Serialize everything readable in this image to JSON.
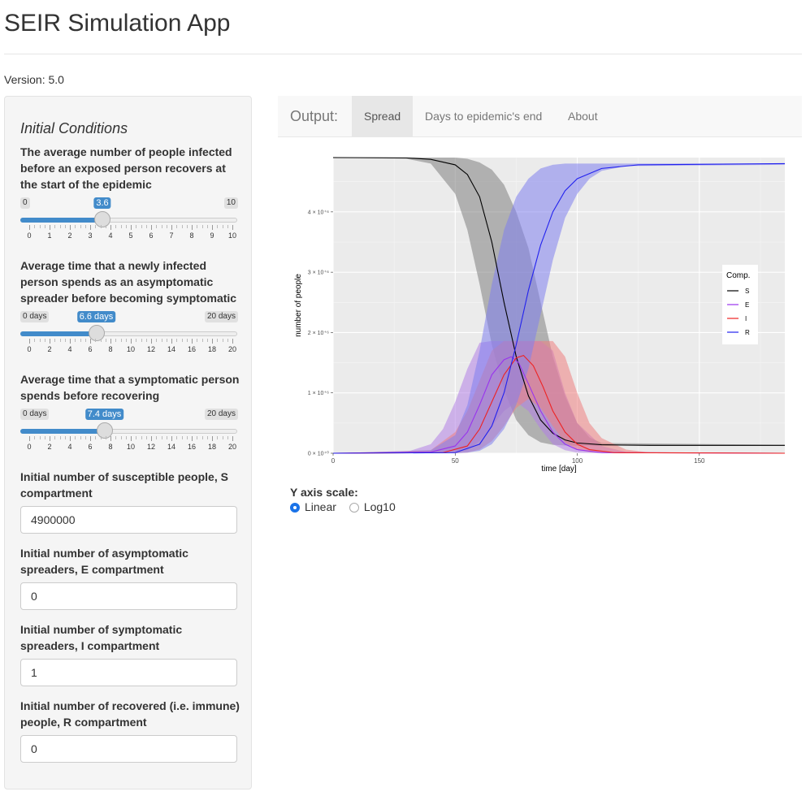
{
  "app": {
    "title": "SEIR Simulation App",
    "version": "Version: 5.0"
  },
  "sidebar": {
    "heading": "Initial Conditions",
    "r0": {
      "label": "The average number of people infected before an exposed person recovers at the start of the epidemic",
      "min_label": "0",
      "max_label": "10",
      "value_label": "3.6",
      "value": 3.6,
      "min": 0,
      "max": 10,
      "tick_labels": [
        "0",
        "1",
        "2",
        "3",
        "4",
        "5",
        "6",
        "7",
        "8",
        "9",
        "10"
      ]
    },
    "incubation": {
      "label": "Average time that a newly infected person spends as an asymptomatic spreader before becoming symptomatic",
      "min_label": "0 days",
      "max_label": "20 days",
      "value_label": "6.6 days",
      "value": 6.6,
      "min": 0,
      "max": 20,
      "tick_labels": [
        "0",
        "2",
        "4",
        "6",
        "8",
        "10",
        "12",
        "14",
        "16",
        "18",
        "20"
      ]
    },
    "recovery": {
      "label": "Average time that a symptomatic person spends before recovering",
      "min_label": "0 days",
      "max_label": "20 days",
      "value_label": "7.4 days",
      "value": 7.4,
      "min": 0,
      "max": 20,
      "tick_labels": [
        "0",
        "2",
        "4",
        "6",
        "8",
        "10",
        "12",
        "14",
        "16",
        "18",
        "20"
      ]
    },
    "s0": {
      "label": "Initial number of susceptible people, S compartment",
      "value": "4900000"
    },
    "e0": {
      "label": "Initial number of asymptomatic spreaders, E compartment",
      "value": "0"
    },
    "i0": {
      "label": "Initial number of symptomatic spreaders, I compartment",
      "value": "1"
    },
    "r0c": {
      "label": "Initial number of recovered (i.e. immune) people, R compartment",
      "value": "0"
    }
  },
  "tabs": {
    "brand": "Output:",
    "items": [
      "Spread",
      "Days to epidemic's end",
      "About"
    ],
    "active": 0
  },
  "y_scale": {
    "title": "Y axis scale:",
    "options": [
      "Linear",
      "Log10"
    ],
    "selected": 0
  },
  "chart_data": {
    "type": "line",
    "xlabel": "time [day]",
    "ylabel": "number of people",
    "xlim": [
      0,
      185
    ],
    "ylim": [
      0,
      4900000
    ],
    "x_ticks": [
      0,
      50,
      100,
      150
    ],
    "x_tick_labels": [
      "0",
      "50",
      "100",
      "150"
    ],
    "y_ticks": [
      0,
      1000000,
      2000000,
      3000000,
      4000000
    ],
    "y_tick_labels": [
      "0 × 10⁺⁰",
      "1 × 10⁺⁶",
      "2 × 10⁺⁶",
      "3 × 10⁺⁶",
      "4 × 10⁺⁶"
    ],
    "legend": {
      "title": "Comp.",
      "placement": "right",
      "entries": [
        "S",
        "E",
        "I",
        "R"
      ]
    },
    "grid": true,
    "series": [
      {
        "name": "S",
        "color": "#000000",
        "band_color": "#7f7f7f",
        "points": [
          [
            0,
            4900000
          ],
          [
            30,
            4895000
          ],
          [
            40,
            4870000
          ],
          [
            50,
            4780000
          ],
          [
            55,
            4620000
          ],
          [
            60,
            4250000
          ],
          [
            65,
            3500000
          ],
          [
            70,
            2500000
          ],
          [
            75,
            1600000
          ],
          [
            80,
            950000
          ],
          [
            85,
            550000
          ],
          [
            90,
            330000
          ],
          [
            95,
            220000
          ],
          [
            100,
            170000
          ],
          [
            110,
            140000
          ],
          [
            130,
            130000
          ],
          [
            185,
            130000
          ]
        ],
        "band": [
          [
            0,
            4900000,
            4900000
          ],
          [
            30,
            4880000,
            4900000
          ],
          [
            40,
            4800000,
            4900000
          ],
          [
            50,
            4300000,
            4900000
          ],
          [
            55,
            3700000,
            4880000
          ],
          [
            60,
            2800000,
            4820000
          ],
          [
            65,
            1800000,
            4700000
          ],
          [
            70,
            1050000,
            4450000
          ],
          [
            75,
            550000,
            4000000
          ],
          [
            80,
            300000,
            3400000
          ],
          [
            85,
            180000,
            2500000
          ],
          [
            90,
            140000,
            1600000
          ],
          [
            95,
            130000,
            950000
          ],
          [
            100,
            125000,
            500000
          ],
          [
            105,
            125000,
            260000
          ],
          [
            110,
            125000,
            170000
          ],
          [
            185,
            125000,
            140000
          ]
        ]
      },
      {
        "name": "E",
        "color": "#9933ee",
        "band_color": "#b37fe6",
        "points": [
          [
            0,
            0
          ],
          [
            40,
            20000
          ],
          [
            50,
            120000
          ],
          [
            55,
            350000
          ],
          [
            60,
            800000
          ],
          [
            65,
            1300000
          ],
          [
            70,
            1550000
          ],
          [
            73,
            1600000
          ],
          [
            76,
            1500000
          ],
          [
            80,
            1150000
          ],
          [
            85,
            700000
          ],
          [
            90,
            350000
          ],
          [
            95,
            150000
          ],
          [
            100,
            60000
          ],
          [
            110,
            10000
          ],
          [
            185,
            0
          ]
        ],
        "band": [
          [
            0,
            0,
            0
          ],
          [
            30,
            0,
            20000
          ],
          [
            40,
            0,
            150000
          ],
          [
            45,
            0,
            400000
          ],
          [
            50,
            10000,
            850000
          ],
          [
            55,
            50000,
            1400000
          ],
          [
            60,
            200000,
            1830000
          ],
          [
            65,
            450000,
            1860000
          ],
          [
            70,
            700000,
            1860000
          ],
          [
            75,
            850000,
            1860000
          ],
          [
            80,
            700000,
            1860000
          ],
          [
            85,
            400000,
            1860000
          ],
          [
            90,
            150000,
            1700000
          ],
          [
            95,
            50000,
            1000000
          ],
          [
            100,
            10000,
            500000
          ],
          [
            110,
            0,
            120000
          ],
          [
            120,
            0,
            20000
          ],
          [
            185,
            0,
            0
          ]
        ]
      },
      {
        "name": "I",
        "color": "#ee2222",
        "band_color": "#ee8080",
        "points": [
          [
            0,
            0
          ],
          [
            45,
            10000
          ],
          [
            55,
            120000
          ],
          [
            60,
            400000
          ],
          [
            65,
            850000
          ],
          [
            70,
            1300000
          ],
          [
            75,
            1580000
          ],
          [
            78,
            1620000
          ],
          [
            82,
            1450000
          ],
          [
            86,
            1100000
          ],
          [
            90,
            700000
          ],
          [
            95,
            350000
          ],
          [
            100,
            150000
          ],
          [
            105,
            60000
          ],
          [
            115,
            10000
          ],
          [
            185,
            0
          ]
        ],
        "band": [
          [
            0,
            0,
            0
          ],
          [
            40,
            0,
            50000
          ],
          [
            50,
            0,
            350000
          ],
          [
            55,
            10000,
            700000
          ],
          [
            60,
            60000,
            1200000
          ],
          [
            65,
            200000,
            1700000
          ],
          [
            70,
            450000,
            1860000
          ],
          [
            75,
            750000,
            1860000
          ],
          [
            80,
            900000,
            1860000
          ],
          [
            85,
            750000,
            1860000
          ],
          [
            90,
            450000,
            1860000
          ],
          [
            95,
            180000,
            1600000
          ],
          [
            100,
            60000,
            1000000
          ],
          [
            105,
            20000,
            500000
          ],
          [
            110,
            5000,
            250000
          ],
          [
            120,
            0,
            60000
          ],
          [
            130,
            0,
            10000
          ],
          [
            185,
            0,
            0
          ]
        ]
      },
      {
        "name": "R",
        "color": "#2222ee",
        "band_color": "#8080ee",
        "points": [
          [
            0,
            0
          ],
          [
            50,
            10000
          ],
          [
            60,
            150000
          ],
          [
            65,
            450000
          ],
          [
            70,
            1000000
          ],
          [
            75,
            1800000
          ],
          [
            80,
            2700000
          ],
          [
            85,
            3450000
          ],
          [
            90,
            4000000
          ],
          [
            95,
            4350000
          ],
          [
            100,
            4550000
          ],
          [
            110,
            4720000
          ],
          [
            125,
            4780000
          ],
          [
            185,
            4800000
          ]
        ],
        "band": [
          [
            0,
            0,
            0
          ],
          [
            40,
            0,
            50000
          ],
          [
            50,
            0,
            300000
          ],
          [
            55,
            10000,
            800000
          ],
          [
            60,
            40000,
            1700000
          ],
          [
            65,
            150000,
            2800000
          ],
          [
            70,
            400000,
            3700000
          ],
          [
            75,
            800000,
            4250000
          ],
          [
            80,
            1400000,
            4550000
          ],
          [
            85,
            2300000,
            4720000
          ],
          [
            90,
            3200000,
            4780000
          ],
          [
            95,
            3900000,
            4800000
          ],
          [
            100,
            4300000,
            4800000
          ],
          [
            105,
            4550000,
            4800000
          ],
          [
            110,
            4680000,
            4800000
          ],
          [
            120,
            4760000,
            4800000
          ],
          [
            185,
            4780000,
            4800000
          ]
        ]
      }
    ]
  }
}
